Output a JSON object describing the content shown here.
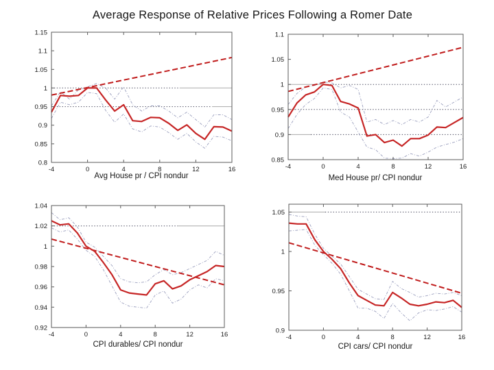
{
  "title": "Average Response of Relative Prices Following a Romer Date",
  "colors": {
    "line": "#c62525",
    "trend": "#c01a1a",
    "band": "#8e94b6",
    "ref_dot": "#3c3c52",
    "ref_solid": "#a9a9a9",
    "axis": "#5a5a5a",
    "text": "#1a1a1a"
  },
  "chart_data": [
    {
      "type": "line",
      "xlabel": "Avg House pr / CPI nondur",
      "xlim": [
        -4,
        16
      ],
      "ylim": [
        0.8,
        1.15
      ],
      "xticks": [
        -4,
        0,
        4,
        8,
        12,
        16
      ],
      "xtick_labels": [
        "-4",
        "0",
        "4",
        "8",
        "12",
        "16"
      ],
      "yticks": [
        0.8,
        0.85,
        0.9,
        0.95,
        1,
        1.05,
        1.1,
        1.15
      ],
      "ytick_labels": [
        "0.8",
        "0.85",
        "0.9",
        "0.95",
        "1",
        "1.05",
        "1.1",
        "1.15"
      ],
      "x": [
        -4,
        -3,
        -2,
        -1,
        0,
        1,
        2,
        3,
        4,
        5,
        6,
        7,
        8,
        9,
        10,
        11,
        12,
        13,
        14,
        15,
        16
      ],
      "series": [
        {
          "name": "mean-response",
          "role": "solid",
          "values": [
            0.935,
            0.98,
            0.978,
            0.98,
            1.0,
            1.0,
            0.968,
            0.938,
            0.955,
            0.912,
            0.91,
            0.921,
            0.92,
            0.905,
            0.886,
            0.901,
            0.878,
            0.862,
            0.896,
            0.895,
            0.884
          ]
        },
        {
          "name": "upper-band",
          "role": "band",
          "values": [
            0.952,
            0.99,
            0.97,
            0.995,
            1.003,
            1.012,
            1.0,
            0.97,
            1.003,
            0.955,
            0.938,
            0.952,
            0.952,
            0.938,
            0.92,
            0.935,
            0.915,
            0.895,
            0.928,
            0.928,
            0.915
          ]
        },
        {
          "name": "lower-band",
          "role": "band",
          "values": [
            0.918,
            0.962,
            0.955,
            0.962,
            0.988,
            0.985,
            0.94,
            0.908,
            0.93,
            0.89,
            0.882,
            0.898,
            0.895,
            0.88,
            0.862,
            0.878,
            0.855,
            0.838,
            0.87,
            0.868,
            0.858
          ]
        }
      ],
      "trend": {
        "x": [
          -4,
          16
        ],
        "values": [
          0.981,
          1.082
        ]
      },
      "refs": [
        {
          "value": 1.0,
          "order": "dotted-then-solid",
          "split": 0.71
        },
        {
          "value": 0.95,
          "order": "dotted-then-solid",
          "split": 0.89
        }
      ]
    },
    {
      "type": "line",
      "xlabel": "Med House pr/ CPI nondur",
      "xlim": [
        -4,
        16
      ],
      "ylim": [
        0.85,
        1.1
      ],
      "xticks": [
        -4,
        0,
        4,
        8,
        12,
        16
      ],
      "xtick_labels": [
        "-4",
        "0",
        "4",
        "8",
        "12",
        "16"
      ],
      "yticks": [
        0.85,
        0.9,
        0.95,
        1,
        1.05,
        1.1
      ],
      "ytick_labels": [
        "0.85",
        "0.9",
        "0.95",
        "1",
        "1.05",
        "1.1"
      ],
      "x": [
        -4,
        -3,
        -2,
        -1,
        0,
        1,
        2,
        3,
        4,
        5,
        6,
        7,
        8,
        9,
        10,
        11,
        12,
        13,
        14,
        15,
        16
      ],
      "series": [
        {
          "name": "mean-response",
          "role": "solid",
          "values": [
            0.935,
            0.963,
            0.979,
            0.985,
            1.0,
            0.998,
            0.966,
            0.961,
            0.953,
            0.897,
            0.9,
            0.884,
            0.889,
            0.877,
            0.892,
            0.892,
            0.899,
            0.915,
            0.914,
            0.924,
            0.934
          ]
        },
        {
          "name": "upper-band",
          "role": "band",
          "values": [
            0.96,
            0.982,
            0.995,
            0.998,
            1.005,
            1.003,
            0.993,
            0.998,
            0.99,
            0.925,
            0.93,
            0.92,
            0.928,
            0.92,
            0.93,
            0.925,
            0.935,
            0.968,
            0.955,
            0.965,
            0.975
          ]
        },
        {
          "name": "lower-band",
          "role": "band",
          "values": [
            0.912,
            0.94,
            0.96,
            0.972,
            0.993,
            0.99,
            0.945,
            0.935,
            0.905,
            0.875,
            0.87,
            0.853,
            0.852,
            0.853,
            0.862,
            0.857,
            0.865,
            0.875,
            0.88,
            0.885,
            0.892
          ]
        }
      ],
      "trend": {
        "x": [
          -4,
          16
        ],
        "values": [
          0.986,
          1.074
        ]
      },
      "refs": [
        {
          "value": 1.0,
          "order": "solid-then-dotted",
          "split": 0.21
        },
        {
          "value": 0.95,
          "order": "solid-then-dotted",
          "split": 0.04
        },
        {
          "value": 0.9,
          "order": "solid-then-dotted",
          "split": 0.13
        }
      ]
    },
    {
      "type": "line",
      "xlabel": "CPI durables/ CPI nondur",
      "xlim": [
        -4,
        16
      ],
      "ylim": [
        0.92,
        1.04
      ],
      "xticks": [
        -4,
        0,
        4,
        8,
        12,
        16
      ],
      "xtick_labels": [
        "-4",
        "0",
        "4",
        "8",
        "12",
        "16"
      ],
      "yticks": [
        0.92,
        0.94,
        0.96,
        0.98,
        1,
        1.02,
        1.04
      ],
      "ytick_labels": [
        "0.92",
        "0.94",
        "0.96",
        "0.98",
        "1",
        "1.02",
        "1.04"
      ],
      "x": [
        -4,
        -3,
        -2,
        -1,
        0,
        1,
        2,
        3,
        4,
        5,
        6,
        7,
        8,
        9,
        10,
        11,
        12,
        13,
        14,
        15,
        16
      ],
      "series": [
        {
          "name": "mean-response",
          "role": "solid",
          "values": [
            1.025,
            1.021,
            1.022,
            1.013,
            1.0,
            0.995,
            0.984,
            0.972,
            0.957,
            0.954,
            0.953,
            0.952,
            0.963,
            0.966,
            0.958,
            0.961,
            0.967,
            0.971,
            0.975,
            0.981,
            0.98
          ]
        },
        {
          "name": "upper-band",
          "role": "band",
          "values": [
            1.033,
            1.026,
            1.028,
            1.019,
            1.004,
            0.999,
            0.99,
            0.981,
            0.968,
            0.965,
            0.964,
            0.965,
            0.972,
            0.977,
            0.972,
            0.974,
            0.978,
            0.982,
            0.986,
            0.995,
            0.991
          ]
        },
        {
          "name": "lower-band",
          "role": "band",
          "values": [
            1.018,
            1.014,
            1.016,
            1.007,
            0.996,
            0.99,
            0.977,
            0.961,
            0.945,
            0.941,
            0.94,
            0.939,
            0.952,
            0.956,
            0.944,
            0.948,
            0.957,
            0.962,
            0.959,
            0.968,
            0.966
          ]
        }
      ],
      "trend": {
        "x": [
          -4,
          16
        ],
        "values": [
          1.007,
          0.962
        ]
      },
      "refs": [
        {
          "value": 1.02,
          "order": "dotted-then-solid",
          "split": 0.73
        }
      ]
    },
    {
      "type": "line",
      "xlabel": "CPI cars/ CPI nondur",
      "xlim": [
        -4,
        16
      ],
      "ylim": [
        0.9,
        1.06
      ],
      "xticks": [
        -4,
        0,
        4,
        8,
        12,
        16
      ],
      "xtick_labels": [
        "-4",
        "0",
        "4",
        "8",
        "12",
        "16"
      ],
      "yticks": [
        0.9,
        0.95,
        1,
        1.05
      ],
      "ytick_labels": [
        "0.9",
        "0.95",
        "1",
        "1.05"
      ],
      "x": [
        -4,
        -3,
        -2,
        -1,
        0,
        1,
        2,
        3,
        4,
        5,
        6,
        7,
        8,
        9,
        10,
        11,
        12,
        13,
        14,
        15,
        16
      ],
      "series": [
        {
          "name": "mean-response",
          "role": "solid",
          "values": [
            1.036,
            1.035,
            1.035,
            1.015,
            1.0,
            0.99,
            0.978,
            0.96,
            0.944,
            0.938,
            0.932,
            0.931,
            0.948,
            0.941,
            0.933,
            0.931,
            0.933,
            0.936,
            0.935,
            0.938,
            0.929
          ]
        },
        {
          "name": "upper-band",
          "role": "band",
          "values": [
            1.047,
            1.045,
            1.044,
            1.022,
            1.004,
            0.994,
            0.984,
            0.968,
            0.952,
            0.946,
            0.94,
            0.939,
            0.962,
            0.953,
            0.948,
            0.942,
            0.944,
            0.947,
            0.946,
            0.948,
            0.944
          ]
        },
        {
          "name": "lower-band",
          "role": "band",
          "values": [
            1.026,
            1.027,
            1.028,
            1.008,
            0.996,
            0.985,
            0.971,
            0.95,
            0.928,
            0.928,
            0.924,
            0.915,
            0.934,
            0.922,
            0.912,
            0.922,
            0.926,
            0.925,
            0.927,
            0.93,
            0.923
          ]
        }
      ],
      "trend": {
        "x": [
          -4,
          16
        ],
        "values": [
          1.011,
          0.947
        ]
      },
      "refs": [
        {
          "value": 1.05,
          "order": "solid-then-dotted",
          "split": 0.21
        }
      ]
    }
  ]
}
